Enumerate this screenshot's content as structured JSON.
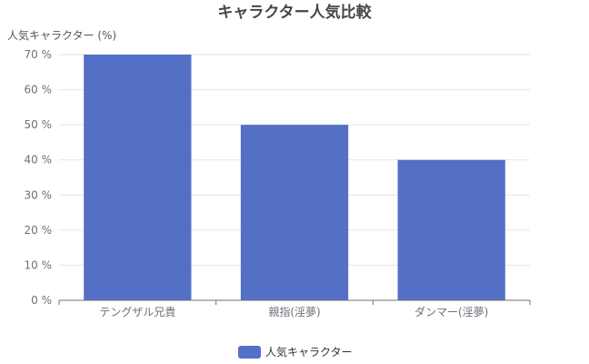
{
  "chart_data": {
    "type": "bar",
    "title": "キャラクター人気比較",
    "ylabel": "人気キャラクター (%)",
    "xlabel": "",
    "categories": [
      "テングザル兄貴",
      "親指(淫夢)",
      "ダンマー(淫夢)"
    ],
    "series": [
      {
        "name": "人気キャラクター",
        "values": [
          70,
          50,
          40
        ]
      }
    ],
    "ylim": [
      0,
      70
    ],
    "y_ticks": [
      0,
      10,
      20,
      30,
      40,
      50,
      60,
      70
    ],
    "y_tick_suffix": " %",
    "grid": true,
    "legend": "bottom-center",
    "colors": {
      "bar": "#5470c6",
      "grid": "#e0e6f1",
      "axis": "#6e7079"
    }
  }
}
